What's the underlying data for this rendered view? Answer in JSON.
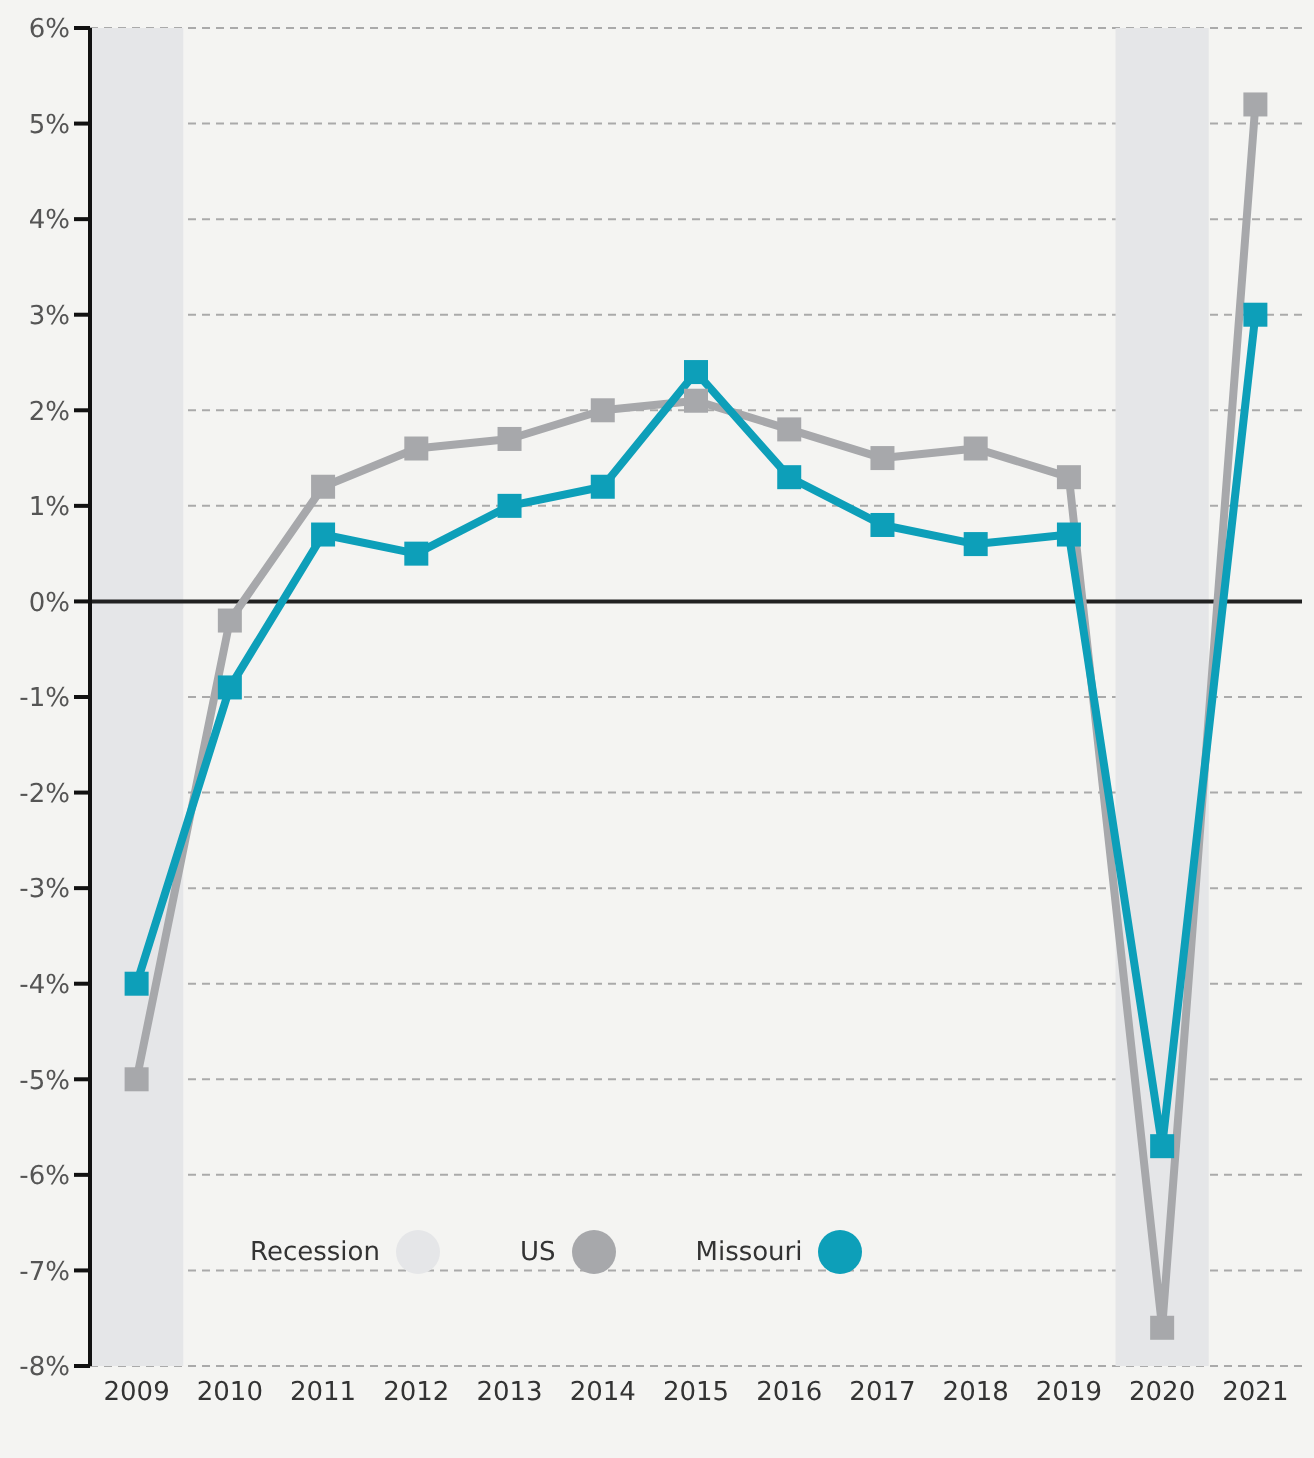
{
  "chart_data": {
    "type": "line",
    "categories": [
      "2009",
      "2010",
      "2011",
      "2012",
      "2013",
      "2014",
      "2015",
      "2016",
      "2017",
      "2018",
      "2019",
      "2020",
      "2021"
    ],
    "series": [
      {
        "name": "US",
        "color": "#a7a8ab",
        "values": [
          -5,
          -0.2,
          1.2,
          1.6,
          1.7,
          2.0,
          2.1,
          1.8,
          1.5,
          1.6,
          1.3,
          -7.6,
          5.2
        ]
      },
      {
        "name": "Missouri",
        "color": "#0d9fb9",
        "values": [
          -4.0,
          -0.9,
          0.7,
          0.5,
          1.0,
          1.2,
          2.4,
          1.3,
          0.8,
          0.6,
          0.7,
          -5.7,
          3.0
        ]
      }
    ],
    "ylim": [
      -8,
      6
    ],
    "yticks": [
      {
        "value": -8,
        "label": "-8%"
      },
      {
        "value": -7,
        "label": "-7%"
      },
      {
        "value": -6,
        "label": "-6%"
      },
      {
        "value": -5,
        "label": "-5%"
      },
      {
        "value": -4,
        "label": "-4%"
      },
      {
        "value": -3,
        "label": "-3%"
      },
      {
        "value": -2,
        "label": "-2%"
      },
      {
        "value": -1,
        "label": "-1%"
      },
      {
        "value": 0,
        "label": "0%"
      },
      {
        "value": 1,
        "label": "1%"
      },
      {
        "value": 2,
        "label": "2%"
      },
      {
        "value": 3,
        "label": "3%"
      },
      {
        "value": 4,
        "label": "4%"
      },
      {
        "value": 5,
        "label": "5%"
      },
      {
        "value": 6,
        "label": "6%"
      }
    ],
    "bands": [
      {
        "axis": "x",
        "from": "2009",
        "to": "2009",
        "label": "Recession",
        "color": "#e5e6e8"
      },
      {
        "axis": "x",
        "from": "2020",
        "to": "2020",
        "color": "#e5e6e8"
      }
    ],
    "ref_lines": [
      {
        "axis": "y",
        "value": 0,
        "color": "#222222"
      }
    ],
    "grid": "y",
    "legend": "bottom left",
    "marker": "square",
    "line_style": "solid"
  }
}
